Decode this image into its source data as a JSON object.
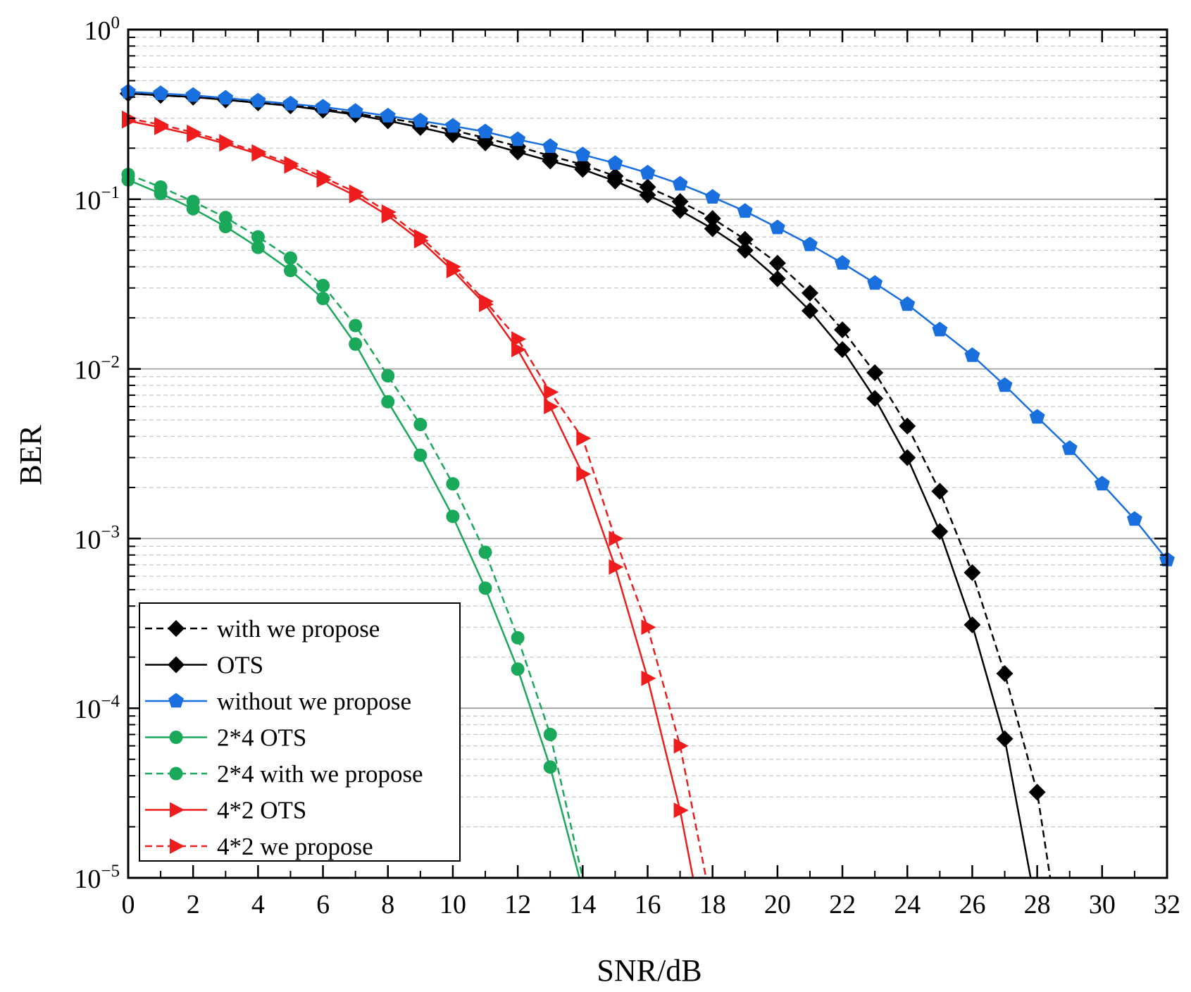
{
  "chart_data": {
    "type": "line",
    "title": "",
    "xlabel": "SNR/dB",
    "ylabel": "BER",
    "yscale": "log",
    "xlim": [
      0,
      32
    ],
    "ylim": [
      1e-05,
      1
    ],
    "grid": true,
    "legend_position": "bottom-left",
    "x_ticks": [
      "0",
      "2",
      "4",
      "6",
      "8",
      "10",
      "12",
      "14",
      "16",
      "18",
      "20",
      "22",
      "24",
      "26",
      "28",
      "30",
      "32"
    ],
    "y_ticks": [
      {
        "base": "10",
        "exp": "0"
      },
      {
        "base": "10",
        "exp": "−1"
      },
      {
        "base": "10",
        "exp": "−2"
      },
      {
        "base": "10",
        "exp": "−3"
      },
      {
        "base": "10",
        "exp": "−4"
      },
      {
        "base": "10",
        "exp": "−5"
      }
    ],
    "series": [
      {
        "name": "with we propose",
        "color": "#000000",
        "dash": true,
        "marker": "diamond",
        "x": [
          0,
          1,
          2,
          3,
          4,
          5,
          6,
          7,
          8,
          9,
          10,
          11,
          12,
          13,
          14,
          15,
          16,
          17,
          18,
          19,
          20,
          21,
          22,
          23,
          24,
          25,
          26,
          27,
          28,
          28.4
        ],
        "y": [
          0.42,
          0.41,
          0.4,
          0.39,
          0.375,
          0.36,
          0.34,
          0.32,
          0.3,
          0.28,
          0.255,
          0.23,
          0.205,
          0.18,
          0.16,
          0.137,
          0.118,
          0.097,
          0.077,
          0.058,
          0.042,
          0.028,
          0.017,
          0.0095,
          0.0046,
          0.0019,
          0.00063,
          0.00016,
          3.2e-05,
          1e-05
        ]
      },
      {
        "name": "OTS",
        "color": "#000000",
        "dash": false,
        "marker": "diamond",
        "x": [
          0,
          1,
          2,
          3,
          4,
          5,
          6,
          7,
          8,
          9,
          10,
          11,
          12,
          13,
          14,
          15,
          16,
          17,
          18,
          19,
          20,
          21,
          22,
          23,
          24,
          25,
          26,
          27,
          27.8
        ],
        "y": [
          0.42,
          0.41,
          0.4,
          0.385,
          0.37,
          0.355,
          0.335,
          0.315,
          0.29,
          0.265,
          0.24,
          0.215,
          0.19,
          0.168,
          0.15,
          0.128,
          0.106,
          0.086,
          0.067,
          0.05,
          0.034,
          0.022,
          0.013,
          0.0067,
          0.003,
          0.0011,
          0.00031,
          6.6e-05,
          1e-05
        ]
      },
      {
        "name": "without we propose",
        "color": "#1a6fdf",
        "dash": false,
        "marker": "pentagon",
        "x": [
          0,
          1,
          2,
          3,
          4,
          5,
          6,
          7,
          8,
          9,
          10,
          11,
          12,
          13,
          14,
          15,
          16,
          17,
          18,
          19,
          20,
          21,
          22,
          23,
          24,
          25,
          26,
          27,
          28,
          29,
          30,
          31,
          32
        ],
        "y": [
          0.43,
          0.42,
          0.41,
          0.395,
          0.38,
          0.365,
          0.35,
          0.33,
          0.31,
          0.29,
          0.27,
          0.25,
          0.225,
          0.205,
          0.183,
          0.163,
          0.143,
          0.123,
          0.103,
          0.085,
          0.068,
          0.054,
          0.042,
          0.032,
          0.024,
          0.017,
          0.012,
          0.008,
          0.0052,
          0.0034,
          0.0021,
          0.0013,
          0.00075
        ]
      },
      {
        "name": "2*4 OTS",
        "color": "#1aa85a",
        "dash": false,
        "marker": "circle",
        "x": [
          0,
          1,
          2,
          3,
          4,
          5,
          6,
          7,
          8,
          9,
          10,
          11,
          12,
          13,
          13.9
        ],
        "y": [
          0.13,
          0.108,
          0.088,
          0.069,
          0.052,
          0.038,
          0.026,
          0.014,
          0.0064,
          0.0031,
          0.00135,
          0.00051,
          0.00017,
          4.5e-05,
          1e-05
        ]
      },
      {
        "name": "2*4 with we propose",
        "color": "#1aa85a",
        "dash": true,
        "marker": "circle",
        "x": [
          0,
          1,
          2,
          3,
          4,
          5,
          6,
          7,
          8,
          9,
          10,
          11,
          12,
          13,
          14
        ],
        "y": [
          0.14,
          0.118,
          0.097,
          0.078,
          0.06,
          0.045,
          0.031,
          0.018,
          0.0091,
          0.0047,
          0.0021,
          0.00083,
          0.00026,
          7e-05,
          1e-05
        ]
      },
      {
        "name": "4*2 OTS",
        "color": "#ee1c1c",
        "dash": false,
        "marker": "triangle-right",
        "x": [
          0,
          1,
          2,
          3,
          4,
          5,
          6,
          7,
          8,
          9,
          10,
          11,
          12,
          13,
          14,
          15,
          16,
          17,
          17.4
        ],
        "y": [
          0.29,
          0.265,
          0.24,
          0.212,
          0.185,
          0.157,
          0.13,
          0.105,
          0.08,
          0.057,
          0.038,
          0.024,
          0.013,
          0.006,
          0.0024,
          0.00068,
          0.00015,
          2.5e-05,
          1e-05
        ]
      },
      {
        "name": "4*2 we propose",
        "color": "#ee1c1c",
        "dash": true,
        "marker": "triangle-right",
        "x": [
          0,
          1,
          2,
          3,
          4,
          5,
          6,
          7,
          8,
          9,
          10,
          11,
          12,
          13,
          14,
          15,
          16,
          17,
          17.8
        ],
        "y": [
          0.3,
          0.275,
          0.248,
          0.218,
          0.19,
          0.162,
          0.135,
          0.11,
          0.084,
          0.06,
          0.04,
          0.025,
          0.015,
          0.0073,
          0.0039,
          0.001,
          0.0003,
          6e-05,
          1e-05
        ]
      }
    ]
  }
}
